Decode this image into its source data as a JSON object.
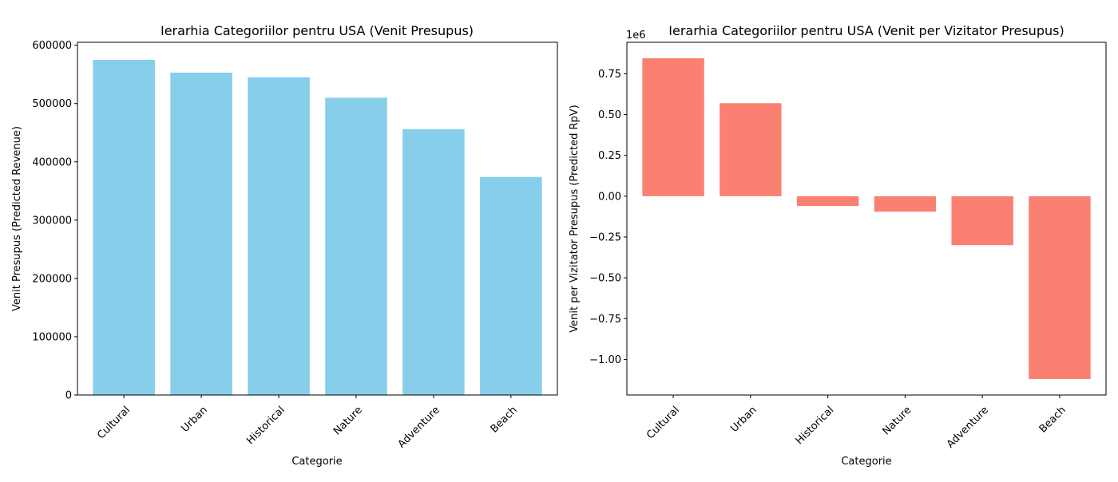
{
  "chart_data": [
    {
      "type": "bar",
      "title": "Ierarhia Categoriilor pentru USA (Venit Presupus)",
      "xlabel": "Categorie",
      "ylabel": "Venit Presupus (Predicted Revenue)",
      "categories": [
        "Cultural",
        "Urban",
        "Historical",
        "Nature",
        "Adventure",
        "Beach"
      ],
      "values": [
        575000,
        553000,
        545000,
        510000,
        456000,
        374000
      ],
      "ylim": [
        0,
        605000
      ],
      "yticks": [
        0,
        100000,
        200000,
        300000,
        400000,
        500000,
        600000
      ],
      "ytick_labels": [
        "0",
        "100000",
        "200000",
        "300000",
        "400000",
        "500000",
        "600000"
      ],
      "bar_color": "#87ceeb",
      "grid": false,
      "xtick_rotation": "45"
    },
    {
      "type": "bar",
      "title": "Ierarhia Categoriilor pentru USA (Venit per Vizitator Presupus)",
      "xlabel": "Categorie",
      "ylabel": "Venit per Vizitator Presupus (Predicted RpV)",
      "offset_text": "1e6",
      "categories": [
        "Cultural",
        "Urban",
        "Historical",
        "Nature",
        "Adventure",
        "Beach"
      ],
      "values": [
        845000,
        570000,
        -60000,
        -95000,
        -300000,
        -1120000
      ],
      "ylim": [
        -1218000,
        943000
      ],
      "yticks": [
        750000.0,
        500000.0,
        250000.0,
        0,
        -250000.0,
        -500000.0,
        -750000.0,
        -1000000.0
      ],
      "ytick_labels": [
        "0.75",
        "0.50",
        "0.25",
        "0.00",
        "−0.25",
        "−0.50",
        "−0.75",
        "−1.00"
      ],
      "bar_color": "#fa8072",
      "grid": false,
      "xtick_rotation": "45"
    }
  ]
}
